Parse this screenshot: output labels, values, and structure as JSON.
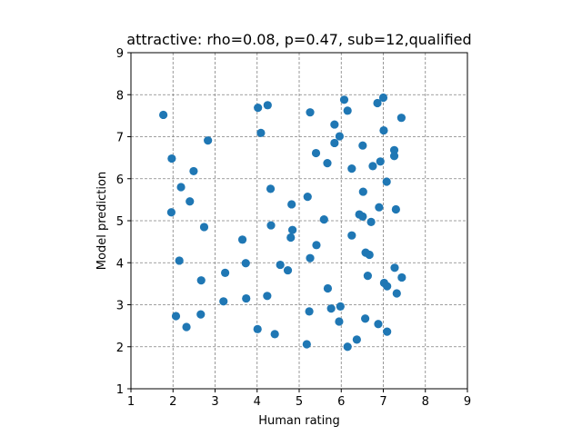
{
  "chart_data": {
    "type": "scatter",
    "title": "attractive: rho=0.08, p=0.47, sub=12,qualified",
    "xlabel": "Human rating",
    "ylabel": "Model prediction",
    "xlim": [
      1,
      9
    ],
    "ylim": [
      1,
      9
    ],
    "xticks": [
      1,
      2,
      3,
      4,
      5,
      6,
      7,
      8,
      9
    ],
    "yticks": [
      1,
      2,
      3,
      4,
      5,
      6,
      7,
      8,
      9
    ],
    "grid": true,
    "color": "#1f77b4",
    "points": [
      [
        1.77,
        7.52
      ],
      [
        1.97,
        6.48
      ],
      [
        1.96,
        5.2
      ],
      [
        2.07,
        2.73
      ],
      [
        2.15,
        4.05
      ],
      [
        2.19,
        5.8
      ],
      [
        2.32,
        2.47
      ],
      [
        2.4,
        5.46
      ],
      [
        2.49,
        6.18
      ],
      [
        2.67,
        3.58
      ],
      [
        2.66,
        2.77
      ],
      [
        2.74,
        4.85
      ],
      [
        2.83,
        6.91
      ],
      [
        3.2,
        3.08
      ],
      [
        3.24,
        3.76
      ],
      [
        3.65,
        4.55
      ],
      [
        3.73,
        3.99
      ],
      [
        3.74,
        3.15
      ],
      [
        4.02,
        7.69
      ],
      [
        4.09,
        7.09
      ],
      [
        4.01,
        2.42
      ],
      [
        4.25,
        7.75
      ],
      [
        4.24,
        3.21
      ],
      [
        4.32,
        5.76
      ],
      [
        4.33,
        4.89
      ],
      [
        4.42,
        2.3
      ],
      [
        4.55,
        3.95
      ],
      [
        4.73,
        3.82
      ],
      [
        4.8,
        4.6
      ],
      [
        4.82,
        5.39
      ],
      [
        4.84,
        4.78
      ],
      [
        5.18,
        2.06
      ],
      [
        5.2,
        5.57
      ],
      [
        5.24,
        2.84
      ],
      [
        5.26,
        7.58
      ],
      [
        5.26,
        4.11
      ],
      [
        5.4,
        6.61
      ],
      [
        5.41,
        4.42
      ],
      [
        5.59,
        5.03
      ],
      [
        5.67,
        6.37
      ],
      [
        5.68,
        3.39
      ],
      [
        5.76,
        2.91
      ],
      [
        5.84,
        6.85
      ],
      [
        5.84,
        7.29
      ],
      [
        5.95,
        2.6
      ],
      [
        5.96,
        7.01
      ],
      [
        5.98,
        2.96
      ],
      [
        6.07,
        7.88
      ],
      [
        6.15,
        7.62
      ],
      [
        6.15,
        2.0
      ],
      [
        6.25,
        6.24
      ],
      [
        6.25,
        4.65
      ],
      [
        6.37,
        2.17
      ],
      [
        6.43,
        5.15
      ],
      [
        6.51,
        5.1
      ],
      [
        6.51,
        6.79
      ],
      [
        6.52,
        5.69
      ],
      [
        6.57,
        2.67
      ],
      [
        6.58,
        4.24
      ],
      [
        6.63,
        3.69
      ],
      [
        6.67,
        4.19
      ],
      [
        6.71,
        4.97
      ],
      [
        6.75,
        6.3
      ],
      [
        6.86,
        7.8
      ],
      [
        6.88,
        2.54
      ],
      [
        6.9,
        5.32
      ],
      [
        6.93,
        6.41
      ],
      [
        7.0,
        7.93
      ],
      [
        7.01,
        7.15
      ],
      [
        7.02,
        3.52
      ],
      [
        7.08,
        5.93
      ],
      [
        7.09,
        3.44
      ],
      [
        7.09,
        2.36
      ],
      [
        7.26,
        6.68
      ],
      [
        7.26,
        6.54
      ],
      [
        7.27,
        3.88
      ],
      [
        7.3,
        5.27
      ],
      [
        7.32,
        3.27
      ],
      [
        7.43,
        7.45
      ],
      [
        7.44,
        3.65
      ]
    ]
  }
}
